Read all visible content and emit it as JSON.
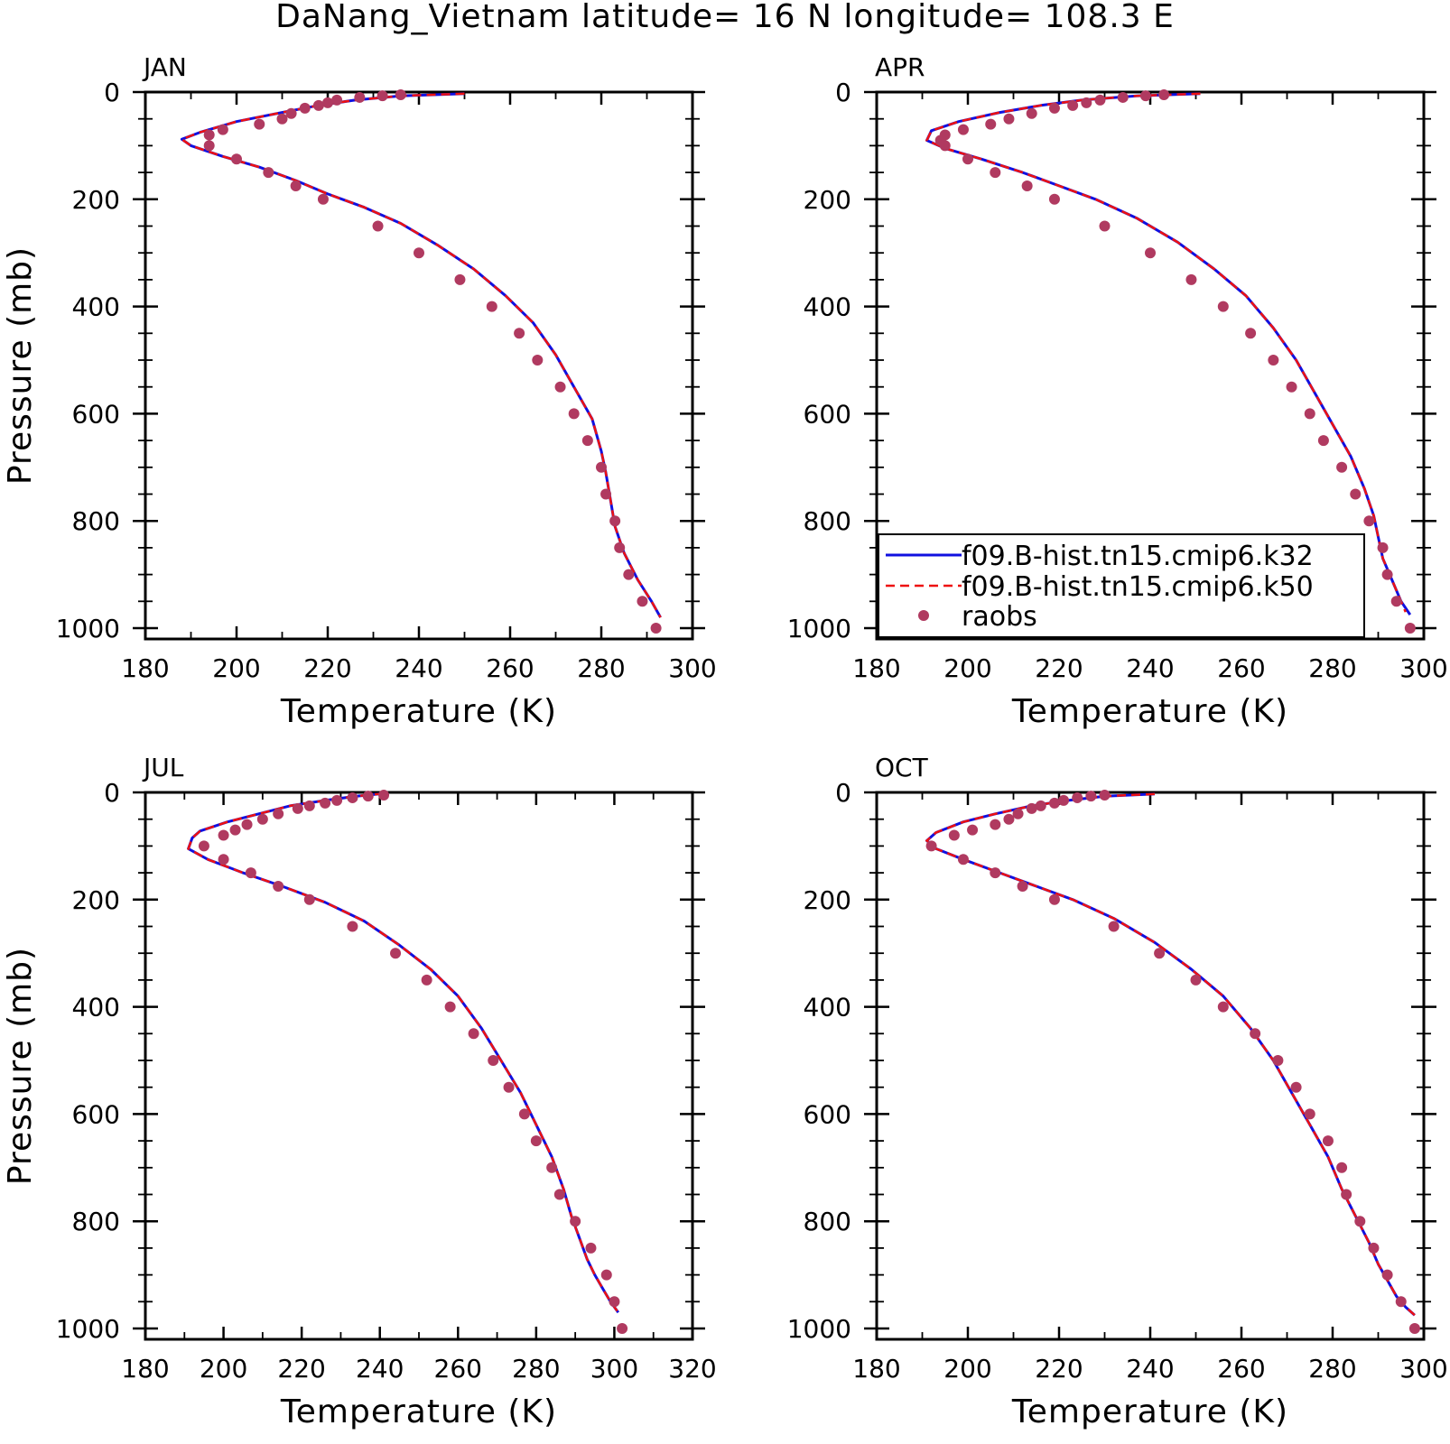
{
  "title": "DaNang_Vietnam  latitude= 16 N longitude= 108.3 E",
  "legend": {
    "k32": "f09.B-hist.tn15.cmip6.k32",
    "k50": "f09.B-hist.tn15.cmip6.k50",
    "obs": "raobs"
  },
  "colors": {
    "k32": "#1010e0",
    "k50": "#ee1111",
    "obs": "#b03a60"
  },
  "chart_data": [
    {
      "type": "line",
      "panel_label": "JAN",
      "xlabel": "Temperature (K)",
      "ylabel": "Pressure (mb)",
      "xlim": [
        180,
        300
      ],
      "ylim": [
        1000,
        0
      ],
      "xticks": [
        "180",
        "200",
        "220",
        "240",
        "260",
        "280",
        "300"
      ],
      "yticks": [
        "0",
        "200",
        "400",
        "600",
        "800",
        "1000"
      ],
      "series": [
        {
          "name": "f09.B-hist.tn15.cmip6.k32",
          "style": "solid",
          "x": [
            250,
            236,
            226,
            218,
            210,
            200,
            192,
            188,
            190,
            197,
            205,
            213,
            220,
            228,
            236,
            244,
            252,
            259,
            265,
            270,
            274,
            278,
            280,
            281,
            282,
            283,
            285,
            288,
            291,
            293
          ],
          "y": [
            3,
            7,
            15,
            25,
            38,
            55,
            75,
            88,
            100,
            120,
            140,
            165,
            190,
            215,
            245,
            285,
            330,
            380,
            430,
            490,
            550,
            610,
            670,
            710,
            760,
            810,
            860,
            910,
            950,
            980
          ]
        },
        {
          "name": "f09.B-hist.tn15.cmip6.k50",
          "style": "dashed",
          "x": [
            250,
            236,
            226,
            218,
            210,
            200,
            192,
            188,
            190,
            197,
            205,
            213,
            220,
            228,
            236,
            244,
            252,
            259,
            265,
            270,
            274,
            278,
            280,
            281,
            282,
            283,
            285,
            288,
            291,
            293
          ],
          "y": [
            3,
            7,
            15,
            25,
            38,
            55,
            75,
            88,
            100,
            120,
            140,
            165,
            190,
            215,
            245,
            285,
            330,
            380,
            430,
            490,
            550,
            610,
            670,
            710,
            760,
            810,
            860,
            910,
            950,
            980
          ]
        },
        {
          "name": "raobs",
          "style": "markers",
          "x": [
            236,
            232,
            227,
            222,
            220,
            218,
            215,
            212,
            210,
            205,
            197,
            194,
            194,
            200,
            207,
            213,
            219,
            231,
            240,
            249,
            256,
            262,
            266,
            271,
            274,
            277,
            280,
            281,
            283,
            284,
            286,
            289,
            292
          ],
          "y": [
            5,
            7,
            10,
            15,
            20,
            25,
            30,
            40,
            50,
            60,
            70,
            80,
            100,
            125,
            150,
            175,
            200,
            250,
            300,
            350,
            400,
            450,
            500,
            550,
            600,
            650,
            700,
            750,
            800,
            850,
            900,
            950,
            1000
          ]
        }
      ]
    },
    {
      "type": "line",
      "panel_label": "APR",
      "xlabel": "Temperature (K)",
      "ylabel": "",
      "xlim": [
        180,
        300
      ],
      "ylim": [
        1000,
        0
      ],
      "xticks": [
        "180",
        "200",
        "220",
        "240",
        "260",
        "280",
        "300"
      ],
      "yticks": [
        "0",
        "200",
        "400",
        "600",
        "800",
        "1000"
      ],
      "legend_position": "bottom-left",
      "series": [
        {
          "name": "f09.B-hist.tn15.cmip6.k32",
          "style": "solid",
          "x": [
            251,
            237,
            225,
            216,
            207,
            198,
            192,
            191,
            195,
            203,
            212,
            220,
            228,
            237,
            246,
            254,
            261,
            267,
            272,
            276,
            280,
            284,
            287,
            289,
            290,
            291,
            293,
            295,
            297
          ],
          "y": [
            3,
            7,
            15,
            25,
            38,
            55,
            72,
            90,
            105,
            125,
            150,
            175,
            200,
            235,
            280,
            330,
            380,
            440,
            500,
            560,
            620,
            680,
            740,
            790,
            830,
            870,
            910,
            950,
            975
          ]
        },
        {
          "name": "f09.B-hist.tn15.cmip6.k50",
          "style": "dashed",
          "x": [
            251,
            237,
            225,
            216,
            207,
            198,
            192,
            191,
            195,
            203,
            212,
            220,
            228,
            237,
            246,
            254,
            261,
            267,
            272,
            276,
            280,
            284,
            287,
            289,
            290,
            291,
            293,
            295,
            296
          ],
          "y": [
            3,
            7,
            15,
            25,
            38,
            55,
            72,
            90,
            105,
            125,
            150,
            175,
            200,
            235,
            280,
            330,
            380,
            440,
            500,
            560,
            620,
            680,
            740,
            790,
            830,
            870,
            910,
            950,
            970
          ]
        },
        {
          "name": "raobs",
          "style": "markers",
          "x": [
            243,
            239,
            234,
            229,
            226,
            223,
            219,
            214,
            209,
            205,
            199,
            195,
            194,
            195,
            200,
            206,
            213,
            219,
            230,
            240,
            249,
            256,
            262,
            267,
            271,
            275,
            278,
            282,
            285,
            288,
            291,
            292,
            294,
            297
          ],
          "y": [
            5,
            7,
            10,
            15,
            20,
            25,
            30,
            40,
            50,
            60,
            70,
            80,
            90,
            100,
            125,
            150,
            175,
            200,
            250,
            300,
            350,
            400,
            450,
            500,
            550,
            600,
            650,
            700,
            750,
            800,
            850,
            900,
            950,
            1000
          ]
        }
      ]
    },
    {
      "type": "line",
      "panel_label": "JUL",
      "xlabel": "Temperature (K)",
      "ylabel": "Pressure (mb)",
      "xlim": [
        180,
        320
      ],
      "ylim": [
        1000,
        0
      ],
      "xticks": [
        "180",
        "200",
        "220",
        "240",
        "260",
        "280",
        "300",
        "320"
      ],
      "yticks": [
        "0",
        "200",
        "400",
        "600",
        "800",
        "1000"
      ],
      "series": [
        {
          "name": "f09.B-hist.tn15.cmip6.k32",
          "style": "solid",
          "x": [
            241,
            234,
            226,
            217,
            209,
            201,
            194,
            192,
            191,
            196,
            205,
            215,
            226,
            236,
            245,
            253,
            260,
            266,
            271,
            276,
            280,
            284,
            287,
            289,
            291,
            293,
            295,
            297,
            299,
            301
          ],
          "y": [
            2,
            7,
            15,
            25,
            40,
            55,
            72,
            85,
            105,
            125,
            150,
            175,
            205,
            240,
            285,
            330,
            380,
            440,
            500,
            560,
            620,
            680,
            740,
            790,
            830,
            870,
            900,
            925,
            950,
            970
          ]
        },
        {
          "name": "f09.B-hist.tn15.cmip6.k50",
          "style": "dashed",
          "x": [
            241,
            234,
            226,
            217,
            209,
            201,
            194,
            192,
            191,
            196,
            205,
            215,
            226,
            236,
            245,
            253,
            260,
            266,
            271,
            276,
            280,
            284,
            287,
            289,
            291,
            293,
            295,
            297,
            299,
            301
          ],
          "y": [
            2,
            7,
            15,
            25,
            40,
            55,
            72,
            85,
            105,
            125,
            150,
            175,
            205,
            240,
            285,
            330,
            380,
            440,
            500,
            560,
            620,
            680,
            740,
            790,
            830,
            870,
            900,
            925,
            950,
            970
          ]
        },
        {
          "name": "raobs",
          "style": "markers",
          "x": [
            241,
            237,
            233,
            229,
            226,
            222,
            219,
            214,
            210,
            206,
            203,
            200,
            195,
            200,
            207,
            214,
            222,
            233,
            244,
            252,
            258,
            264,
            269,
            273,
            277,
            280,
            284,
            286,
            290,
            294,
            298,
            300,
            302
          ],
          "y": [
            5,
            7,
            10,
            15,
            20,
            25,
            30,
            40,
            50,
            60,
            70,
            80,
            100,
            125,
            150,
            175,
            200,
            250,
            300,
            350,
            400,
            450,
            500,
            550,
            600,
            650,
            700,
            750,
            800,
            850,
            900,
            950,
            1000
          ]
        }
      ]
    },
    {
      "type": "line",
      "panel_label": "OCT",
      "xlabel": "Temperature (K)",
      "ylabel": "",
      "xlim": [
        180,
        300
      ],
      "ylim": [
        1000,
        0
      ],
      "xticks": [
        "180",
        "200",
        "220",
        "240",
        "260",
        "280",
        "300"
      ],
      "yticks": [
        "0",
        "200",
        "400",
        "600",
        "800",
        "1000"
      ],
      "series": [
        {
          "name": "f09.B-hist.tn15.cmip6.k32",
          "style": "solid",
          "x": [
            241,
            230,
            222,
            214,
            206,
            199,
            193,
            191,
            193,
            199,
            207,
            215,
            223,
            232,
            241,
            249,
            256,
            262,
            267,
            271,
            275,
            279,
            282,
            285,
            288,
            290,
            292,
            294,
            296,
            298
          ],
          "y": [
            3,
            7,
            15,
            25,
            40,
            55,
            75,
            90,
            105,
            125,
            150,
            175,
            200,
            235,
            280,
            330,
            380,
            440,
            500,
            560,
            620,
            680,
            740,
            790,
            840,
            880,
            910,
            940,
            960,
            975
          ]
        },
        {
          "name": "f09.B-hist.tn15.cmip6.k50",
          "style": "dashed",
          "x": [
            241,
            230,
            222,
            214,
            206,
            199,
            193,
            191,
            193,
            199,
            207,
            215,
            223,
            232,
            241,
            249,
            256,
            262,
            267,
            271,
            275,
            279,
            282,
            285,
            288,
            290,
            292,
            294,
            296,
            298
          ],
          "y": [
            3,
            7,
            15,
            25,
            40,
            55,
            75,
            90,
            105,
            125,
            150,
            175,
            200,
            235,
            280,
            330,
            380,
            440,
            500,
            560,
            620,
            680,
            740,
            790,
            840,
            880,
            910,
            940,
            960,
            975
          ]
        },
        {
          "name": "raobs",
          "style": "markers",
          "x": [
            230,
            227,
            224,
            221,
            219,
            216,
            214,
            211,
            209,
            206,
            201,
            197,
            192,
            199,
            206,
            212,
            219,
            232,
            242,
            250,
            256,
            263,
            268,
            272,
            275,
            279,
            282,
            283,
            286,
            289,
            292,
            295,
            298
          ],
          "y": [
            5,
            7,
            10,
            15,
            20,
            25,
            30,
            40,
            50,
            60,
            70,
            80,
            100,
            125,
            150,
            175,
            200,
            250,
            300,
            350,
            400,
            450,
            500,
            550,
            600,
            650,
            700,
            750,
            800,
            850,
            900,
            950,
            1000
          ]
        }
      ]
    }
  ]
}
